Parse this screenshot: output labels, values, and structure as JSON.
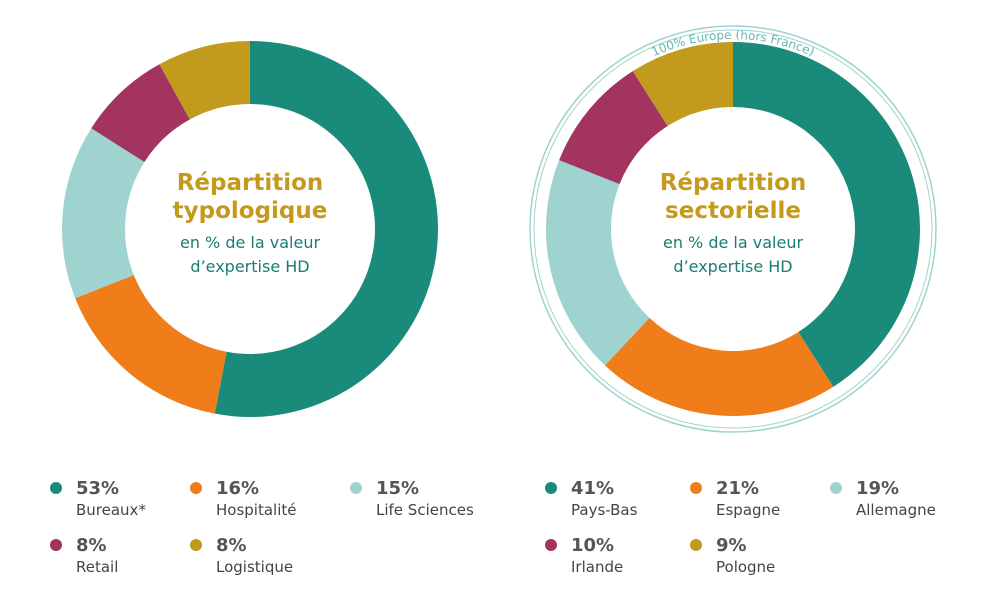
{
  "chart_data": [
    {
      "type": "pie",
      "title": "Répartition typologique",
      "subtitle": "en % de la valeur d’expertise HD",
      "categories": [
        "Bureaux*",
        "Hospitalité",
        "Life Sciences",
        "Retail",
        "Logistique"
      ],
      "values": [
        53,
        16,
        15,
        8,
        8
      ],
      "value_labels": [
        "53%",
        "16%",
        "15%",
        "8%",
        "8%"
      ],
      "colors": [
        "#1a8a7a",
        "#ef7d1a",
        "#9fd3cf",
        "#a3345f",
        "#c19a1e"
      ]
    },
    {
      "type": "pie",
      "title": "Répartition sectorielle",
      "subtitle": "en % de la valeur d’expertise HD",
      "annotation": "100% Europe (hors France)",
      "categories": [
        "Pays-Bas",
        "Espagne",
        "Allemagne",
        "Irlande",
        "Pologne"
      ],
      "values": [
        41,
        21,
        19,
        10,
        9
      ],
      "value_labels": [
        "41%",
        "21%",
        "19%",
        "10%",
        "9%"
      ],
      "colors": [
        "#1a8a7a",
        "#ef7d1a",
        "#9fd3cf",
        "#a3345f",
        "#c19a1e"
      ]
    }
  ]
}
